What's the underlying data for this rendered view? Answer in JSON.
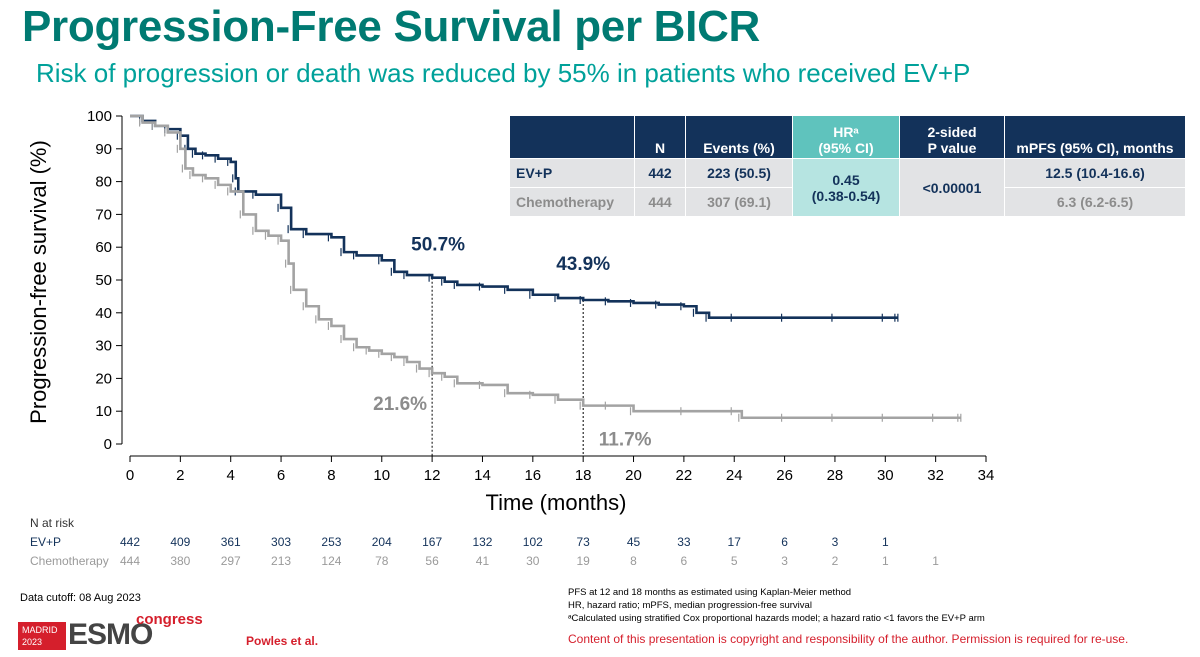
{
  "slide": {
    "title": "Progression-Free Survival per BICR",
    "subtitle": "Risk of progression or death was reduced by 55% in patients who received EV+P"
  },
  "colors": {
    "evp": "#13325a",
    "chemo": "#a3a3a3",
    "title": "#007a72",
    "accent": "#d51f2c"
  },
  "chart_data": {
    "type": "line",
    "subtype": "kaplan-meier",
    "xlabel": "Time (months)",
    "ylabel": "Progression-free survival (%)",
    "xlim": [
      0,
      34
    ],
    "ylim": [
      0,
      100
    ],
    "x_ticks": [
      "0",
      "2",
      "4",
      "6",
      "8",
      "10",
      "12",
      "14",
      "16",
      "18",
      "20",
      "22",
      "24",
      "26",
      "28",
      "30",
      "32",
      "34"
    ],
    "y_ticks": [
      "0",
      "10",
      "20",
      "30",
      "40",
      "50",
      "60",
      "70",
      "80",
      "90",
      "100"
    ],
    "grid": false,
    "series": [
      {
        "name": "EV+P",
        "color": "#13325a",
        "x": [
          0,
          0.5,
          1,
          1.5,
          2,
          2.3,
          2.6,
          3,
          3.5,
          4,
          4.2,
          4.3,
          5,
          6,
          6.4,
          7,
          8,
          8.5,
          9,
          10,
          10.5,
          11,
          12,
          12.5,
          13,
          14,
          15,
          16,
          17,
          18,
          19,
          20,
          21,
          22,
          22.5,
          23,
          24,
          26,
          28,
          30,
          30.5
        ],
        "y": [
          100,
          98.5,
          97,
          96,
          94,
          90,
          88.5,
          88,
          87,
          86,
          81,
          77,
          76,
          72,
          65.5,
          64,
          63,
          58.5,
          57.5,
          56,
          52.5,
          51.5,
          50.7,
          49.5,
          48.5,
          48,
          47,
          45.5,
          44.5,
          43.9,
          43.5,
          43,
          42.5,
          42,
          40,
          38.5,
          38.5,
          38.5,
          38.5,
          38.5,
          38.5
        ]
      },
      {
        "name": "Chemotherapy",
        "color": "#a3a3a3",
        "x": [
          0,
          0.5,
          1,
          1.5,
          2,
          2.2,
          2.5,
          3,
          3.5,
          4,
          4.5,
          5,
          5.5,
          6,
          6.3,
          6.5,
          7,
          7.5,
          8,
          8.5,
          9,
          9.5,
          10,
          10.5,
          11,
          11.5,
          12,
          12.5,
          13,
          14,
          15,
          16,
          17,
          18,
          19,
          20,
          22,
          24,
          24.3,
          26,
          28,
          30,
          32,
          33
        ],
        "y": [
          100,
          98,
          97,
          95,
          90,
          84,
          82,
          81,
          79,
          77,
          70,
          65,
          63.5,
          62,
          55,
          47,
          42,
          38,
          36,
          32,
          29.5,
          28.5,
          27.5,
          26.5,
          25,
          23,
          21.6,
          20.5,
          18.5,
          18,
          15.5,
          15,
          13.5,
          11.7,
          11.7,
          10,
          10,
          10,
          8,
          8,
          8,
          8,
          8,
          8
        ]
      }
    ],
    "annotations": [
      {
        "text": "50.7%",
        "x": 12,
        "y": 50.7,
        "series": "EV+P"
      },
      {
        "text": "43.9%",
        "x": 18,
        "y": 43.9,
        "series": "EV+P"
      },
      {
        "text": "21.6%",
        "x": 12,
        "y": 21.6,
        "series": "Chemotherapy"
      },
      {
        "text": "11.7%",
        "x": 18,
        "y": 11.7,
        "series": "Chemotherapy"
      }
    ],
    "reference_lines_x": [
      12,
      18
    ]
  },
  "hr_table": {
    "headers": [
      "N",
      "Events (%)",
      "HRᵃ (95% CI)",
      "2-sided P value",
      "mPFS (95% CI), months"
    ],
    "hr_header_line1": "HRᵃ",
    "hr_header_line2": "(95% CI)",
    "p_header_line1": "2-sided",
    "p_header_line2": "P value",
    "rows": [
      {
        "arm": "EV+P",
        "n": "442",
        "events": "223 (50.5)",
        "mpfs": "12.5 (10.4-16.6)"
      },
      {
        "arm": "Chemotherapy",
        "n": "444",
        "events": "307 (69.1)",
        "mpfs": "6.3 (6.2-6.5)"
      }
    ],
    "hr_value": "0.45",
    "hr_ci": "(0.38-0.54)",
    "p_value": "<0.00001"
  },
  "at_risk": {
    "title": "N at risk",
    "rows": [
      {
        "label": "EV+P",
        "values": [
          "442",
          "409",
          "361",
          "303",
          "253",
          "204",
          "167",
          "132",
          "102",
          "73",
          "45",
          "33",
          "17",
          "6",
          "3",
          "1"
        ]
      },
      {
        "label": "Chemotherapy",
        "values": [
          "444",
          "380",
          "297",
          "213",
          "124",
          "78",
          "56",
          "41",
          "30",
          "19",
          "8",
          "6",
          "5",
          "3",
          "2",
          "1",
          "1"
        ]
      }
    ]
  },
  "footer": {
    "cutoff": "Data cutoff: 08 Aug 2023",
    "logo_text_madrid": "MADRID",
    "logo_text_year": "2023",
    "logo_text_esmo": "ESMO",
    "logo_text_congress": "congress",
    "author": "Powles et al.",
    "notes": [
      "PFS at 12 and 18 months as estimated using Kaplan-Meier method",
      "HR, hazard ratio; mPFS, median progression-free survival",
      "ᵃCalculated using stratified Cox proportional hazards model; a hazard ratio <1 favors the EV+P arm"
    ],
    "copyright": "Content of this presentation is copyright and responsibility of the author. Permission is required for re-use."
  }
}
